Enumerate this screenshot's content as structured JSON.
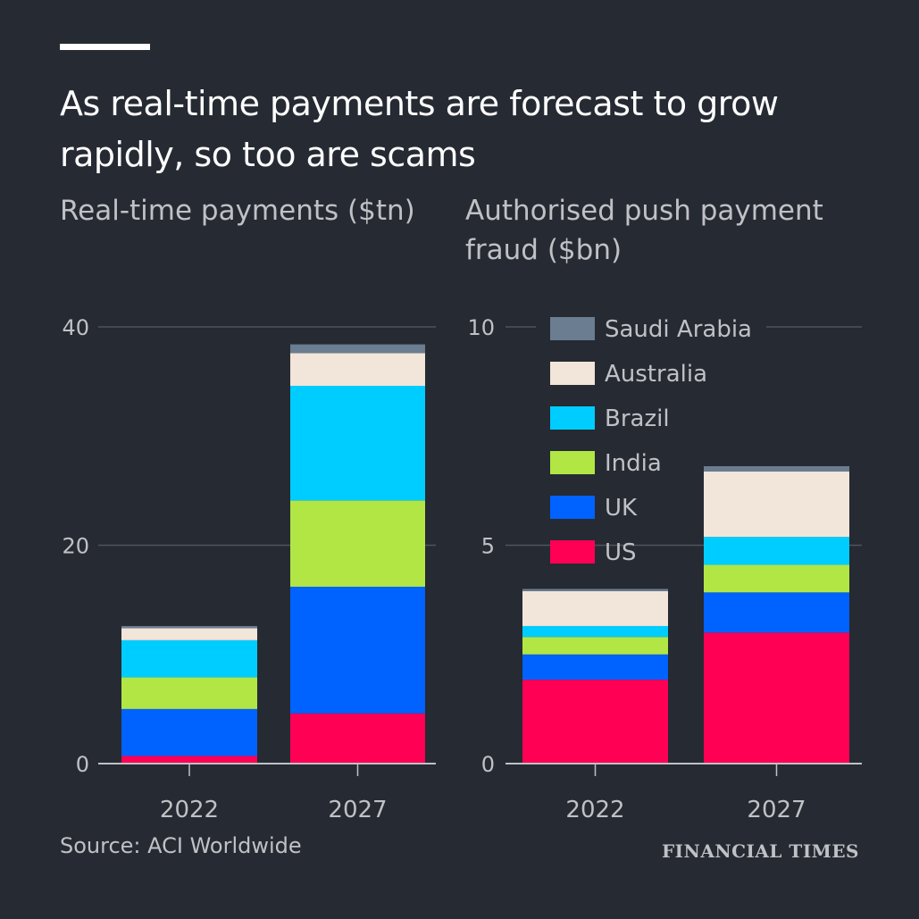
{
  "title": "As real-time payments are forecast to grow rapidly, so too are scams",
  "source": "Source: ACI Worldwide",
  "logo": "FINANCIAL TIMES",
  "colors": {
    "US": "#ff0055",
    "UK": "#0062ff",
    "India": "#b1e645",
    "Brazil": "#00cdff",
    "Australia": "#f2e5d9",
    "Saudi Arabia": "#6a7d91"
  },
  "chart_data": [
    {
      "type": "bar",
      "stacked": true,
      "title": "Real-time payments ($tn)",
      "categories": [
        "2022",
        "2027"
      ],
      "ylim": [
        0,
        40
      ],
      "yticks": [
        0,
        20,
        40
      ],
      "series": [
        {
          "name": "US",
          "values": [
            0.7,
            4.6
          ]
        },
        {
          "name": "UK",
          "values": [
            4.3,
            11.6
          ]
        },
        {
          "name": "India",
          "values": [
            2.9,
            7.9
          ]
        },
        {
          "name": "Brazil",
          "values": [
            3.4,
            10.5
          ]
        },
        {
          "name": "Australia",
          "values": [
            1.1,
            3.0
          ]
        },
        {
          "name": "Saudi Arabia",
          "values": [
            0.2,
            0.8
          ]
        }
      ]
    },
    {
      "type": "bar",
      "stacked": true,
      "title": "Authorised push payment fraud ($bn)",
      "categories": [
        "2022",
        "2027"
      ],
      "ylim": [
        0,
        10
      ],
      "yticks": [
        0,
        5,
        10
      ],
      "legend": "top-left",
      "series": [
        {
          "name": "US",
          "values": [
            1.92,
            3.0
          ]
        },
        {
          "name": "UK",
          "values": [
            0.58,
            0.92
          ]
        },
        {
          "name": "India",
          "values": [
            0.4,
            0.63
          ]
        },
        {
          "name": "Brazil",
          "values": [
            0.25,
            0.64
          ]
        },
        {
          "name": "Australia",
          "values": [
            0.8,
            1.5
          ]
        },
        {
          "name": "Saudi Arabia",
          "values": [
            0.05,
            0.12
          ]
        }
      ]
    }
  ]
}
